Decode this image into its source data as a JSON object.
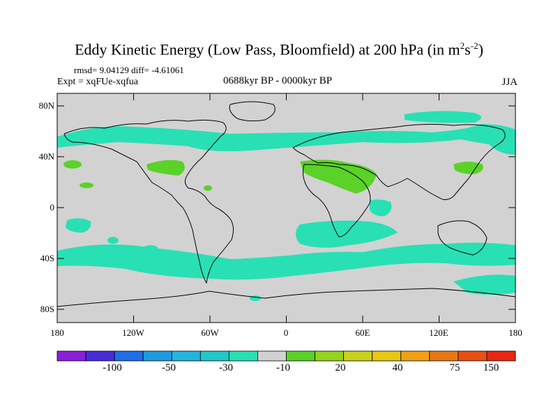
{
  "title_main": "Eddy Kinetic Energy (Low Pass, Bloomfield) at 200 hPa (in m",
  "title_sup1": "2",
  "title_mid": "s",
  "title_sup2": "-2",
  "title_end": ")",
  "stats": "rmsd= 9.04129 diff= -4.61061",
  "experiment": "Expt = xqFUe-xqfua",
  "period": "0688kyr BP - 0000kyr BP",
  "season": "JJA",
  "lat_labels": [
    "80N",
    "40N",
    "0",
    "40S",
    "80S"
  ],
  "lon_labels": [
    "180",
    "120W",
    "60W",
    "0",
    "60E",
    "120E",
    "180"
  ],
  "colorbar": {
    "labels": [
      "-100",
      "-50",
      "-30",
      "-10",
      "20",
      "40",
      "75",
      "150"
    ],
    "colors": [
      "#8a1ed8",
      "#4a2bd8",
      "#1e6ee6",
      "#1e9ae0",
      "#23b4e0",
      "#20c8c8",
      "#28e0b4",
      "#d2d2d2",
      "#5ad228",
      "#96d21e",
      "#c8d21e",
      "#e6c814",
      "#f0a014",
      "#e67814",
      "#e65014",
      "#e62814"
    ]
  },
  "map_colors": {
    "background": "#d2d2d2",
    "negative": "#28e0b4",
    "positive": "#5ad228",
    "coast": "#000000"
  }
}
